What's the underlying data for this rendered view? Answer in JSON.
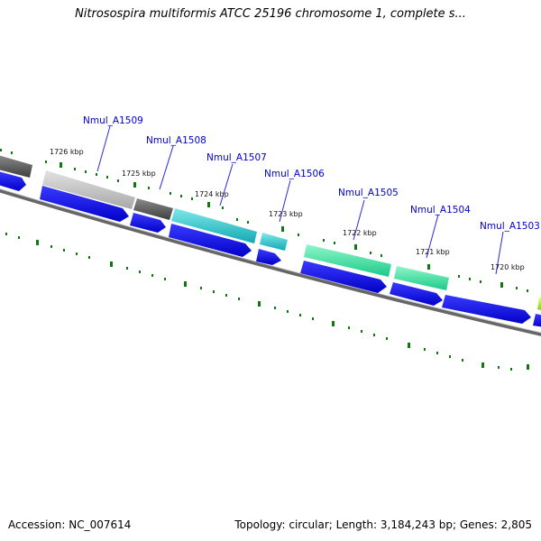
{
  "title": "Nitrosospira multiformis ATCC 25196 chromosome 1, complete s...",
  "footer": {
    "accession": "Accession: NC_007614",
    "summary": "Topology: circular; Length: 3,184,243 bp; Genes: 2,805"
  },
  "scale_labels": [
    "1726 kbp",
    "1725 kbp",
    "1724 kbp",
    "1723 kbp",
    "1722 kbp",
    "1721 kbp",
    "1720 kbp"
  ],
  "gene_labels": [
    "Nmul_A1509",
    "Nmul_A1508",
    "Nmul_A1507",
    "Nmul_A1506",
    "Nmul_A1505",
    "Nmul_A1504",
    "Nmul_A1503"
  ],
  "colors": {
    "cds": "#0000ee",
    "label_text": "#0000cc",
    "leader_line": "#2a2add",
    "tick": "#117711",
    "backbone": "#777777",
    "gray_dark": "#5a5a5a",
    "gray_light": "#bdbdbd",
    "teal": "#22c6cc",
    "mint": "#36e6a6",
    "lime": "#a8ee30"
  }
}
